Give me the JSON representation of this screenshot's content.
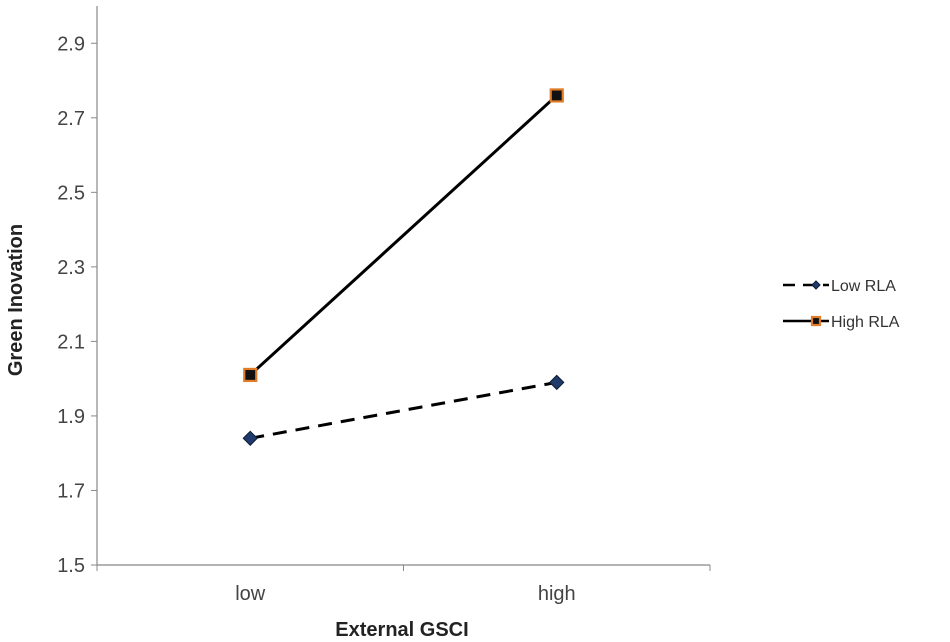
{
  "chart_data": {
    "type": "line",
    "title": "",
    "xlabel": "External GSCI",
    "ylabel": "Green Inovation",
    "categories": [
      "low",
      "high"
    ],
    "ylim": [
      1.5,
      3.0
    ],
    "yticks": [
      "1.5",
      "1.7",
      "1.9",
      "2.1",
      "2.3",
      "2.5",
      "2.7",
      "2.9"
    ],
    "grid": false,
    "legend_position": "right",
    "series": [
      {
        "name": "Low RLA",
        "values": [
          1.84,
          1.99
        ],
        "line_style": "dashed",
        "marker": "diamond",
        "color": "#000000",
        "marker_color": "#1f3a6b"
      },
      {
        "name": "High RLA",
        "values": [
          2.01,
          2.76
        ],
        "line_style": "solid",
        "marker": "square",
        "color": "#000000",
        "marker_color": "#111111",
        "marker_edge_color": "#e07b28"
      }
    ]
  }
}
